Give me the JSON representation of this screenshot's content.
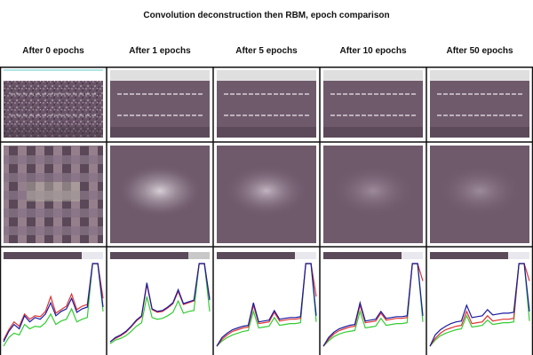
{
  "title": "Convolution deconstruction then RBM, epoch comparison",
  "columns": [
    {
      "label": "After 0 epochs"
    },
    {
      "label": "After 1 epochs"
    },
    {
      "label": "After 5 epochs"
    },
    {
      "label": "After 10 epochs"
    },
    {
      "label": "After 50 epochs"
    }
  ],
  "colors": {
    "border": "#111111",
    "teal_line": "#5ec8c8",
    "image_base": "#6f5a6c",
    "image_bright": "#c8c2c8",
    "series_blue": "#1a1aa0",
    "series_green": "#33cc33",
    "series_red": "#dd3333",
    "panel_bar": "#5a4a5a"
  },
  "chart_data": {
    "type": "line",
    "x": [
      0,
      1,
      2,
      3,
      4,
      5,
      6,
      7,
      8,
      9,
      10,
      11,
      12,
      13,
      14,
      15,
      16,
      17,
      18,
      19
    ],
    "panels": [
      {
        "epochs": 0,
        "series": [
          {
            "color": "blue",
            "values": [
              0.1,
              0.22,
              0.3,
              0.25,
              0.4,
              0.33,
              0.38,
              0.36,
              0.42,
              0.55,
              0.4,
              0.45,
              0.48,
              0.6,
              0.44,
              0.48,
              0.5,
              1.0,
              1.0,
              0.5
            ]
          },
          {
            "color": "green",
            "values": [
              0.05,
              0.15,
              0.2,
              0.18,
              0.3,
              0.25,
              0.28,
              0.27,
              0.32,
              0.42,
              0.3,
              0.34,
              0.36,
              0.48,
              0.33,
              0.36,
              0.38,
              1.0,
              1.0,
              0.45
            ]
          },
          {
            "color": "red",
            "values": [
              0.12,
              0.24,
              0.33,
              0.28,
              0.42,
              0.36,
              0.4,
              0.39,
              0.45,
              0.62,
              0.43,
              0.47,
              0.51,
              0.65,
              0.47,
              0.51,
              0.53,
              1.0,
              1.0,
              0.6
            ]
          }
        ]
      },
      {
        "epochs": 1,
        "series": [
          {
            "color": "blue",
            "values": [
              0.1,
              0.15,
              0.18,
              0.22,
              0.28,
              0.35,
              0.4,
              0.78,
              0.48,
              0.45,
              0.46,
              0.5,
              0.55,
              0.7,
              0.54,
              0.56,
              0.58,
              1.0,
              1.0,
              0.58
            ]
          },
          {
            "color": "green",
            "values": [
              0.08,
              0.12,
              0.14,
              0.17,
              0.22,
              0.28,
              0.32,
              0.62,
              0.38,
              0.36,
              0.37,
              0.4,
              0.44,
              0.57,
              0.43,
              0.45,
              0.46,
              1.0,
              1.0,
              0.45
            ]
          },
          {
            "color": "red",
            "values": [
              0.1,
              0.14,
              0.17,
              0.21,
              0.27,
              0.34,
              0.39,
              0.76,
              0.47,
              0.44,
              0.45,
              0.49,
              0.54,
              0.68,
              0.53,
              0.55,
              0.57,
              1.0,
              1.0,
              0.6
            ]
          }
        ]
      },
      {
        "epochs": 5,
        "series": [
          {
            "color": "blue",
            "values": [
              0.05,
              0.15,
              0.2,
              0.24,
              0.26,
              0.28,
              0.29,
              0.55,
              0.33,
              0.34,
              0.35,
              0.46,
              0.36,
              0.37,
              0.38,
              0.38,
              0.39,
              1.0,
              1.0,
              0.4
            ]
          },
          {
            "color": "green",
            "values": [
              0.05,
              0.11,
              0.15,
              0.18,
              0.2,
              0.22,
              0.23,
              0.45,
              0.26,
              0.27,
              0.28,
              0.38,
              0.29,
              0.3,
              0.31,
              0.31,
              0.32,
              1.0,
              1.0,
              0.33
            ]
          },
          {
            "color": "red",
            "values": [
              0.05,
              0.13,
              0.18,
              0.22,
              0.24,
              0.26,
              0.27,
              0.52,
              0.31,
              0.32,
              0.33,
              0.44,
              0.34,
              0.35,
              0.36,
              0.36,
              0.37,
              1.0,
              1.0,
              0.62
            ]
          }
        ]
      },
      {
        "epochs": 10,
        "series": [
          {
            "color": "blue",
            "values": [
              0.05,
              0.15,
              0.21,
              0.25,
              0.27,
              0.29,
              0.3,
              0.55,
              0.34,
              0.35,
              0.36,
              0.45,
              0.37,
              0.38,
              0.39,
              0.39,
              0.4,
              1.0,
              1.0,
              0.4
            ]
          },
          {
            "color": "green",
            "values": [
              0.05,
              0.11,
              0.16,
              0.19,
              0.21,
              0.22,
              0.23,
              0.45,
              0.26,
              0.27,
              0.28,
              0.37,
              0.29,
              0.3,
              0.31,
              0.31,
              0.32,
              1.0,
              1.0,
              0.33
            ]
          },
          {
            "color": "red",
            "values": [
              0.05,
              0.13,
              0.19,
              0.23,
              0.25,
              0.27,
              0.28,
              0.52,
              0.32,
              0.33,
              0.34,
              0.43,
              0.35,
              0.36,
              0.37,
              0.37,
              0.38,
              1.0,
              1.0,
              0.8
            ]
          }
        ]
      },
      {
        "epochs": 50,
        "series": [
          {
            "color": "blue",
            "values": [
              0.05,
              0.18,
              0.24,
              0.28,
              0.31,
              0.33,
              0.34,
              0.52,
              0.38,
              0.39,
              0.4,
              0.47,
              0.41,
              0.42,
              0.43,
              0.43,
              0.44,
              1.0,
              1.0,
              0.45
            ]
          },
          {
            "color": "green",
            "values": [
              0.05,
              0.12,
              0.17,
              0.2,
              0.22,
              0.24,
              0.25,
              0.4,
              0.27,
              0.28,
              0.29,
              0.35,
              0.3,
              0.31,
              0.32,
              0.32,
              0.33,
              1.0,
              1.0,
              0.34
            ]
          },
          {
            "color": "red",
            "values": [
              0.05,
              0.14,
              0.2,
              0.24,
              0.26,
              0.28,
              0.29,
              0.45,
              0.31,
              0.32,
              0.33,
              0.4,
              0.34,
              0.35,
              0.36,
              0.36,
              0.37,
              1.0,
              1.0,
              0.8
            ]
          }
        ]
      }
    ]
  }
}
